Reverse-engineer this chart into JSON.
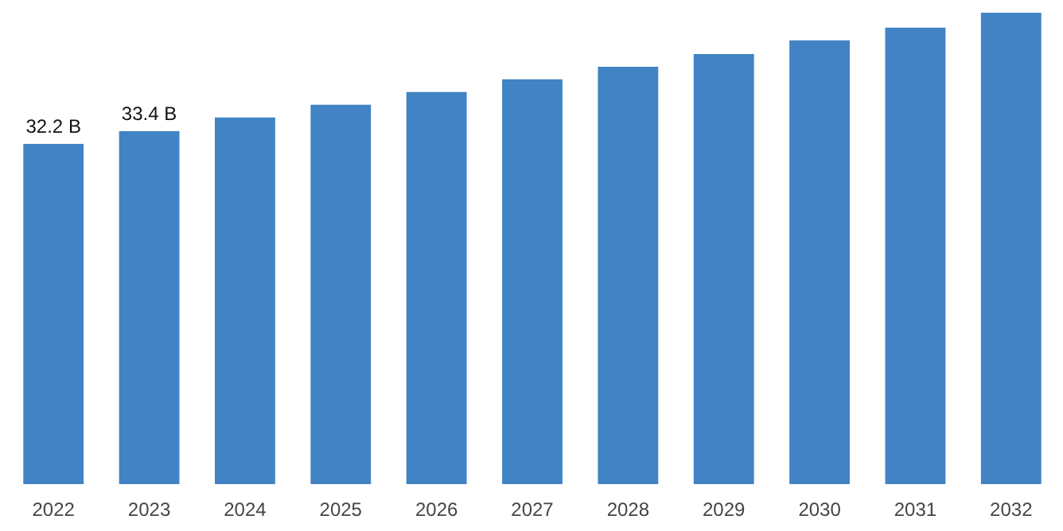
{
  "chart_data": {
    "type": "bar",
    "categories": [
      "2022",
      "2023",
      "2024",
      "2025",
      "2026",
      "2027",
      "2028",
      "2029",
      "2030",
      "2031",
      "2032"
    ],
    "values": [
      32.2,
      33.4,
      34.7,
      35.9,
      37.1,
      38.3,
      39.5,
      40.7,
      42.0,
      43.2,
      44.6
    ],
    "value_labels": [
      "32.2 B",
      "33.4 B",
      null,
      null,
      null,
      null,
      null,
      null,
      null,
      null,
      null
    ],
    "color": "#4183c4",
    "grid": false
  }
}
